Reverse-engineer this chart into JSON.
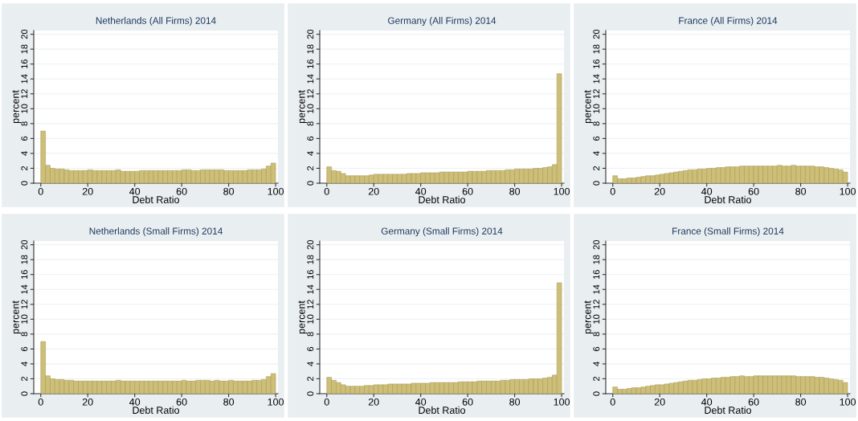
{
  "chart_data": [
    {
      "type": "histogram",
      "title": "Netherlands (All Firms) 2014",
      "xlabel": "Debt Ratio",
      "ylabel": "percent",
      "color": "#cdbf78",
      "grid": "y",
      "xlim": [
        -3,
        101
      ],
      "ylim": [
        0,
        20.5
      ],
      "xticks": [
        0,
        20,
        40,
        60,
        80,
        100
      ],
      "yticks": [
        0,
        2,
        4,
        6,
        8,
        10,
        12,
        14,
        16,
        18,
        20
      ],
      "bins": [
        0,
        2,
        4,
        6,
        8,
        10,
        12,
        14,
        16,
        18,
        20,
        22,
        24,
        26,
        28,
        30,
        32,
        34,
        36,
        38,
        40,
        42,
        44,
        46,
        48,
        50,
        52,
        54,
        56,
        58,
        60,
        62,
        64,
        66,
        68,
        70,
        72,
        74,
        76,
        78,
        80,
        82,
        84,
        86,
        88,
        90,
        92,
        94,
        96,
        98,
        100
      ],
      "values": [
        7.0,
        2.4,
        2.0,
        1.9,
        1.9,
        1.8,
        1.7,
        1.7,
        1.7,
        1.7,
        1.8,
        1.7,
        1.7,
        1.7,
        1.7,
        1.7,
        1.8,
        1.6,
        1.6,
        1.6,
        1.6,
        1.7,
        1.7,
        1.7,
        1.7,
        1.7,
        1.7,
        1.7,
        1.7,
        1.7,
        1.8,
        1.8,
        1.7,
        1.7,
        1.8,
        1.8,
        1.8,
        1.8,
        1.8,
        1.7,
        1.7,
        1.7,
        1.7,
        1.7,
        1.8,
        1.8,
        1.8,
        1.9,
        2.3,
        2.7
      ]
    },
    {
      "type": "histogram",
      "title": "Germany (All Firms) 2014",
      "xlabel": "Debt Ratio",
      "ylabel": "percent",
      "color": "#cdbf78",
      "grid": "y",
      "xlim": [
        -3,
        101
      ],
      "ylim": [
        0,
        20.5
      ],
      "xticks": [
        0,
        20,
        40,
        60,
        80,
        100
      ],
      "yticks": [
        0,
        2,
        4,
        6,
        8,
        10,
        12,
        14,
        16,
        18,
        20
      ],
      "bins": [
        0,
        2,
        4,
        6,
        8,
        10,
        12,
        14,
        16,
        18,
        20,
        22,
        24,
        26,
        28,
        30,
        32,
        34,
        36,
        38,
        40,
        42,
        44,
        46,
        48,
        50,
        52,
        54,
        56,
        58,
        60,
        62,
        64,
        66,
        68,
        70,
        72,
        74,
        76,
        78,
        80,
        82,
        84,
        86,
        88,
        90,
        92,
        94,
        96,
        98,
        100
      ],
      "values": [
        2.2,
        1.7,
        1.6,
        1.3,
        1.0,
        1.0,
        1.0,
        1.0,
        1.0,
        1.1,
        1.2,
        1.2,
        1.2,
        1.2,
        1.2,
        1.2,
        1.2,
        1.3,
        1.3,
        1.3,
        1.4,
        1.4,
        1.4,
        1.4,
        1.5,
        1.5,
        1.5,
        1.5,
        1.5,
        1.5,
        1.6,
        1.6,
        1.6,
        1.6,
        1.7,
        1.7,
        1.7,
        1.7,
        1.8,
        1.8,
        1.9,
        1.9,
        1.9,
        1.9,
        2.0,
        2.0,
        2.1,
        2.2,
        2.5,
        14.7
      ]
    },
    {
      "type": "histogram",
      "title": "France (All Firms) 2014",
      "xlabel": "Debt Ratio",
      "ylabel": "percent",
      "color": "#cdbf78",
      "grid": "y",
      "xlim": [
        -3,
        101
      ],
      "ylim": [
        0,
        20.5
      ],
      "xticks": [
        0,
        20,
        40,
        60,
        80,
        100
      ],
      "yticks": [
        0,
        2,
        4,
        6,
        8,
        10,
        12,
        14,
        16,
        18,
        20
      ],
      "bins": [
        0,
        2,
        4,
        6,
        8,
        10,
        12,
        14,
        16,
        18,
        20,
        22,
        24,
        26,
        28,
        30,
        32,
        34,
        36,
        38,
        40,
        42,
        44,
        46,
        48,
        50,
        52,
        54,
        56,
        58,
        60,
        62,
        64,
        66,
        68,
        70,
        72,
        74,
        76,
        78,
        80,
        82,
        84,
        86,
        88,
        90,
        92,
        94,
        96,
        98,
        100
      ],
      "values": [
        1.0,
        0.6,
        0.6,
        0.7,
        0.7,
        0.8,
        0.9,
        1.0,
        1.0,
        1.1,
        1.2,
        1.3,
        1.4,
        1.5,
        1.6,
        1.7,
        1.8,
        1.8,
        1.9,
        1.9,
        2.0,
        2.0,
        2.1,
        2.1,
        2.2,
        2.2,
        2.2,
        2.3,
        2.3,
        2.3,
        2.3,
        2.3,
        2.3,
        2.3,
        2.3,
        2.4,
        2.3,
        2.3,
        2.4,
        2.3,
        2.3,
        2.3,
        2.3,
        2.2,
        2.2,
        2.1,
        2.0,
        1.9,
        1.8,
        1.5
      ]
    },
    {
      "type": "histogram",
      "title": "Netherlands (Small Firms) 2014",
      "xlabel": "Debt Ratio",
      "ylabel": "percent",
      "color": "#cdbf78",
      "grid": "y",
      "xlim": [
        -3,
        101
      ],
      "ylim": [
        0,
        20.5
      ],
      "xticks": [
        0,
        20,
        40,
        60,
        80,
        100
      ],
      "yticks": [
        0,
        2,
        4,
        6,
        8,
        10,
        12,
        14,
        16,
        18,
        20
      ],
      "bins": [
        0,
        2,
        4,
        6,
        8,
        10,
        12,
        14,
        16,
        18,
        20,
        22,
        24,
        26,
        28,
        30,
        32,
        34,
        36,
        38,
        40,
        42,
        44,
        46,
        48,
        50,
        52,
        54,
        56,
        58,
        60,
        62,
        64,
        66,
        68,
        70,
        72,
        74,
        76,
        78,
        80,
        82,
        84,
        86,
        88,
        90,
        92,
        94,
        96,
        98,
        100
      ],
      "values": [
        7.0,
        2.4,
        2.0,
        1.9,
        1.9,
        1.8,
        1.8,
        1.7,
        1.7,
        1.7,
        1.7,
        1.7,
        1.7,
        1.7,
        1.7,
        1.7,
        1.8,
        1.7,
        1.7,
        1.7,
        1.7,
        1.7,
        1.7,
        1.7,
        1.7,
        1.7,
        1.7,
        1.7,
        1.7,
        1.7,
        1.8,
        1.7,
        1.7,
        1.8,
        1.8,
        1.8,
        1.7,
        1.8,
        1.7,
        1.7,
        1.8,
        1.7,
        1.7,
        1.7,
        1.7,
        1.8,
        1.8,
        1.9,
        2.3,
        2.7
      ]
    },
    {
      "type": "histogram",
      "title": "Germany (Small Firms) 2014",
      "xlabel": "Debt Ratio",
      "ylabel": "percent",
      "color": "#cdbf78",
      "grid": "y",
      "xlim": [
        -3,
        101
      ],
      "ylim": [
        0,
        20.5
      ],
      "xticks": [
        0,
        20,
        40,
        60,
        80,
        100
      ],
      "yticks": [
        0,
        2,
        4,
        6,
        8,
        10,
        12,
        14,
        16,
        18,
        20
      ],
      "bins": [
        0,
        2,
        4,
        6,
        8,
        10,
        12,
        14,
        16,
        18,
        20,
        22,
        24,
        26,
        28,
        30,
        32,
        34,
        36,
        38,
        40,
        42,
        44,
        46,
        48,
        50,
        52,
        54,
        56,
        58,
        60,
        62,
        64,
        66,
        68,
        70,
        72,
        74,
        76,
        78,
        80,
        82,
        84,
        86,
        88,
        90,
        92,
        94,
        96,
        98,
        100
      ],
      "values": [
        2.2,
        1.8,
        1.5,
        1.2,
        1.0,
        1.0,
        1.0,
        1.0,
        1.1,
        1.1,
        1.2,
        1.2,
        1.2,
        1.3,
        1.3,
        1.3,
        1.3,
        1.3,
        1.4,
        1.4,
        1.4,
        1.4,
        1.5,
        1.5,
        1.5,
        1.5,
        1.5,
        1.5,
        1.6,
        1.6,
        1.6,
        1.6,
        1.7,
        1.7,
        1.7,
        1.7,
        1.7,
        1.8,
        1.8,
        1.9,
        1.9,
        1.9,
        1.9,
        2.0,
        2.0,
        2.0,
        2.1,
        2.2,
        2.5,
        14.9
      ]
    },
    {
      "type": "histogram",
      "title": "France (Small Firms) 2014",
      "xlabel": "Debt Ratio",
      "ylabel": "percent",
      "color": "#cdbf78",
      "grid": "y",
      "xlim": [
        -3,
        101
      ],
      "ylim": [
        0,
        20.5
      ],
      "xticks": [
        0,
        20,
        40,
        60,
        80,
        100
      ],
      "yticks": [
        0,
        2,
        4,
        6,
        8,
        10,
        12,
        14,
        16,
        18,
        20
      ],
      "bins": [
        0,
        2,
        4,
        6,
        8,
        10,
        12,
        14,
        16,
        18,
        20,
        22,
        24,
        26,
        28,
        30,
        32,
        34,
        36,
        38,
        40,
        42,
        44,
        46,
        48,
        50,
        52,
        54,
        56,
        58,
        60,
        62,
        64,
        66,
        68,
        70,
        72,
        74,
        76,
        78,
        80,
        82,
        84,
        86,
        88,
        90,
        92,
        94,
        96,
        98,
        100
      ],
      "values": [
        0.9,
        0.6,
        0.6,
        0.7,
        0.8,
        0.8,
        0.9,
        1.0,
        1.1,
        1.2,
        1.2,
        1.3,
        1.4,
        1.5,
        1.6,
        1.7,
        1.8,
        1.8,
        1.9,
        2.0,
        2.0,
        2.1,
        2.1,
        2.2,
        2.2,
        2.3,
        2.3,
        2.4,
        2.3,
        2.3,
        2.4,
        2.4,
        2.4,
        2.4,
        2.4,
        2.4,
        2.4,
        2.4,
        2.4,
        2.3,
        2.3,
        2.3,
        2.3,
        2.2,
        2.2,
        2.1,
        2.0,
        1.9,
        1.8,
        1.5
      ]
    }
  ]
}
